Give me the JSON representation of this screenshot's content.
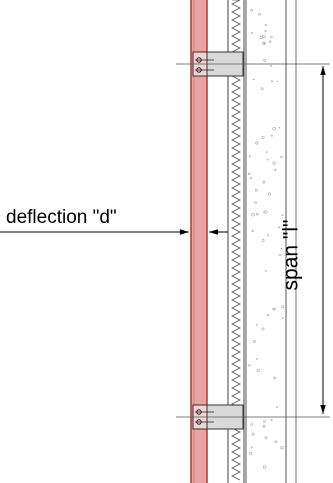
{
  "labels": {
    "deflection": "deflection \"d\"",
    "span": "span \"l\""
  },
  "colors": {
    "panel_fill": "#e8a3a3",
    "panel_stroke": "#b23a3a",
    "bracket_fill": "#d9d9d9",
    "line": "#333333",
    "concrete_speckle": "#aaaaaa"
  },
  "icons": {
    "dimension_arrows": "arrowhead",
    "fasteners": "screw-head"
  }
}
